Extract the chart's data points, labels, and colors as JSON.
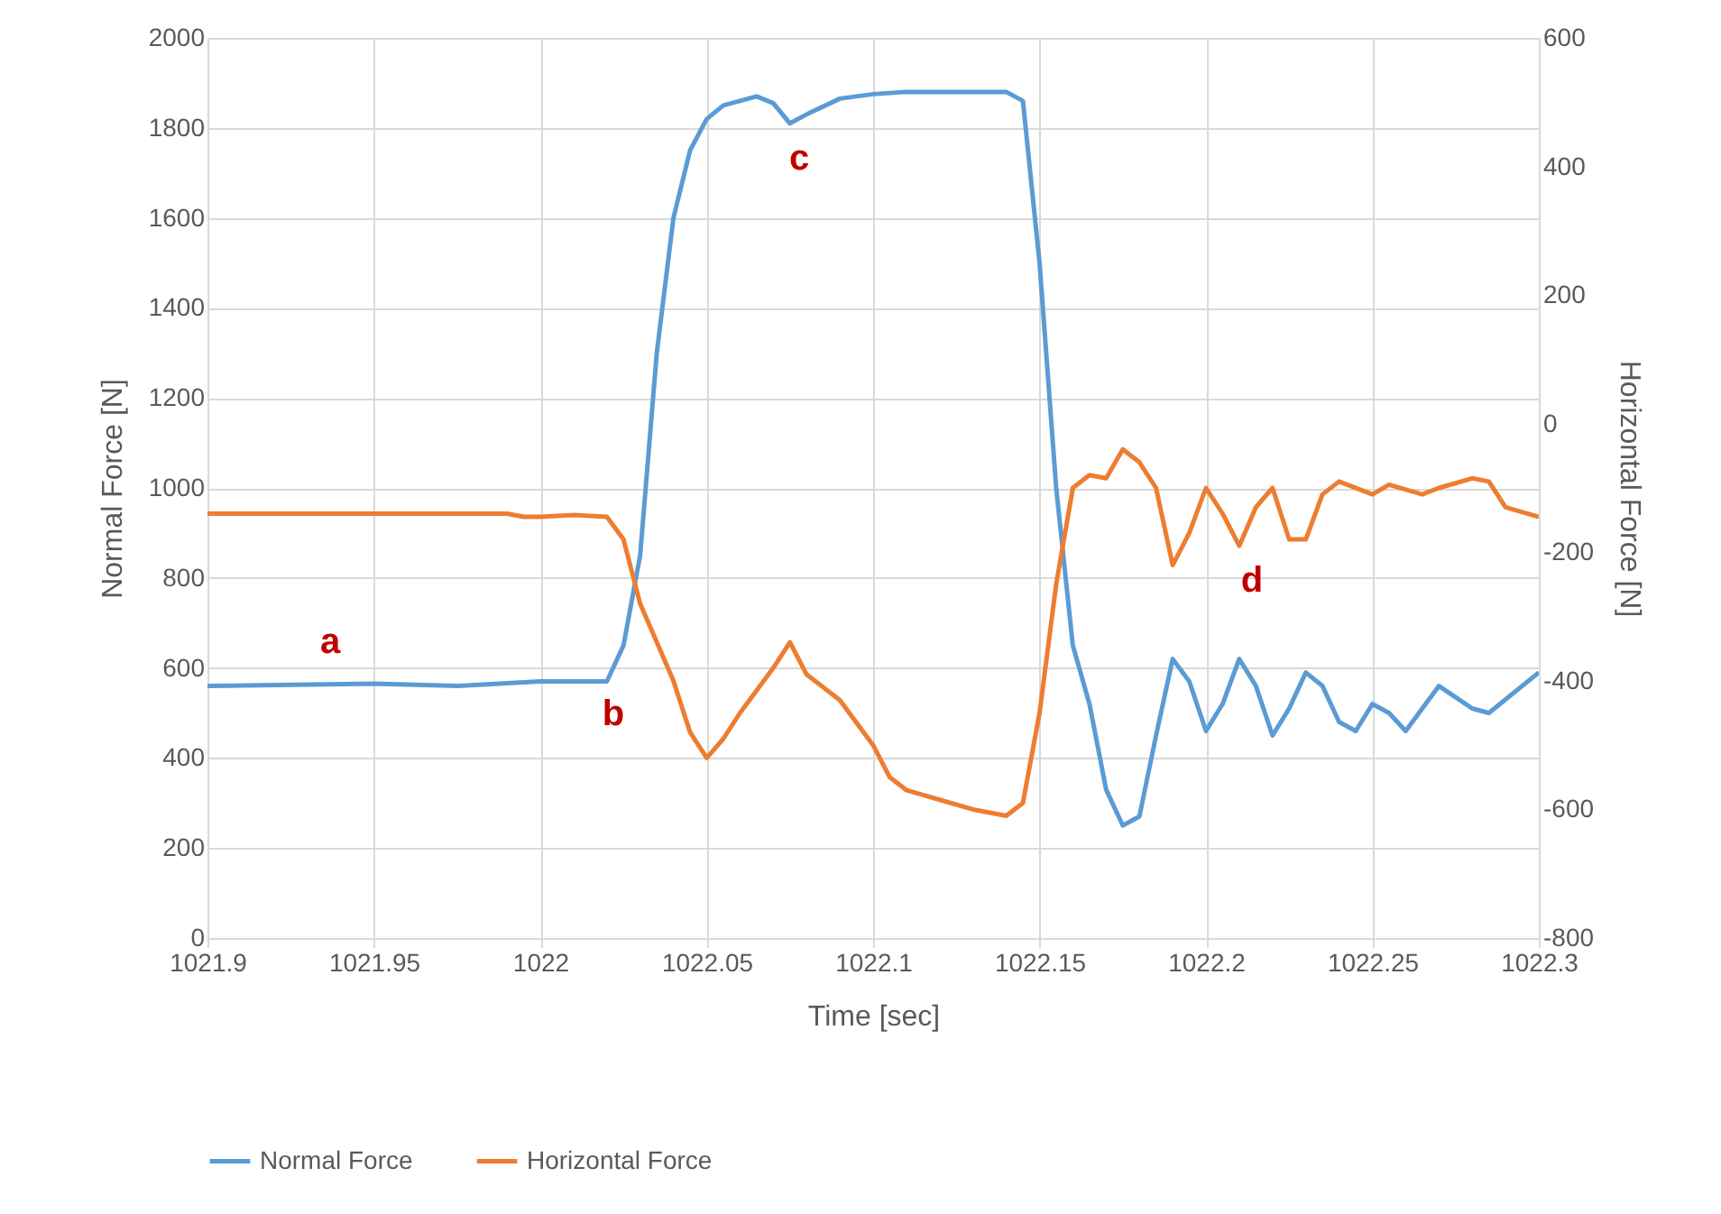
{
  "chart_data": {
    "type": "line",
    "xlabel": "Time [sec]",
    "ylabel": "Normal Force [N]",
    "y2label": "Horizontal Force [N]",
    "xlim": [
      1021.9,
      1022.3
    ],
    "xticks": [
      1021.9,
      1021.95,
      1022,
      1022.05,
      1022.1,
      1022.15,
      1022.2,
      1022.25,
      1022.3
    ],
    "ylim": [
      0,
      2000
    ],
    "yticks": [
      0,
      200,
      400,
      600,
      800,
      1000,
      1200,
      1400,
      1600,
      1800,
      2000
    ],
    "y2lim": [
      -800,
      600
    ],
    "y2ticks": [
      -800,
      -600,
      -400,
      -200,
      0,
      200,
      400,
      600
    ],
    "grid": true,
    "legend": "bottom",
    "line_style": "solid",
    "marker": "none",
    "series": [
      {
        "name": "Normal Force",
        "color": "#5b9bd5",
        "axis": "y",
        "x": [
          1021.9,
          1021.95,
          1021.975,
          1022,
          1022.02,
          1022.025,
          1022.03,
          1022.035,
          1022.04,
          1022.045,
          1022.05,
          1022.055,
          1022.06,
          1022.065,
          1022.07,
          1022.075,
          1022.08,
          1022.09,
          1022.1,
          1022.11,
          1022.14,
          1022.145,
          1022.15,
          1022.155,
          1022.16,
          1022.165,
          1022.17,
          1022.175,
          1022.18,
          1022.185,
          1022.19,
          1022.195,
          1022.2,
          1022.205,
          1022.21,
          1022.215,
          1022.22,
          1022.225,
          1022.23,
          1022.235,
          1022.24,
          1022.245,
          1022.25,
          1022.255,
          1022.26,
          1022.265,
          1022.27,
          1022.28,
          1022.285,
          1022.3
        ],
        "values": [
          560,
          565,
          560,
          570,
          570,
          650,
          850,
          1300,
          1600,
          1750,
          1820,
          1850,
          1860,
          1870,
          1855,
          1810,
          1830,
          1865,
          1875,
          1880,
          1880,
          1860,
          1500,
          1000,
          650,
          520,
          330,
          250,
          270,
          450,
          620,
          570,
          460,
          520,
          620,
          560,
          450,
          510,
          590,
          560,
          480,
          460,
          520,
          500,
          460,
          510,
          560,
          510,
          500,
          590
        ]
      },
      {
        "name": "Horizontal Force",
        "color": "#ed7d31",
        "axis": "y2",
        "x": [
          1021.9,
          1021.99,
          1021.995,
          1022,
          1022.01,
          1022.02,
          1022.025,
          1022.03,
          1022.035,
          1022.04,
          1022.045,
          1022.05,
          1022.055,
          1022.06,
          1022.07,
          1022.075,
          1022.08,
          1022.09,
          1022.1,
          1022.105,
          1022.11,
          1022.12,
          1022.13,
          1022.14,
          1022.145,
          1022.15,
          1022.155,
          1022.16,
          1022.165,
          1022.17,
          1022.175,
          1022.18,
          1022.185,
          1022.19,
          1022.195,
          1022.2,
          1022.205,
          1022.21,
          1022.215,
          1022.22,
          1022.225,
          1022.23,
          1022.235,
          1022.24,
          1022.25,
          1022.255,
          1022.265,
          1022.27,
          1022.28,
          1022.285,
          1022.29,
          1022.3
        ],
        "values": [
          -140,
          -140,
          -145,
          -145,
          -142,
          -145,
          -180,
          -280,
          -340,
          -400,
          -480,
          -520,
          -490,
          -450,
          -380,
          -340,
          -390,
          -430,
          -500,
          -550,
          -570,
          -585,
          -600,
          -610,
          -590,
          -450,
          -250,
          -100,
          -80,
          -85,
          -40,
          -60,
          -100,
          -220,
          -170,
          -100,
          -140,
          -190,
          -130,
          -100,
          -180,
          -180,
          -110,
          -90,
          -110,
          -95,
          -110,
          -100,
          -85,
          -90,
          -130,
          -145
        ]
      }
    ],
    "annotations": [
      "a",
      "b",
      "c",
      "d"
    ]
  }
}
